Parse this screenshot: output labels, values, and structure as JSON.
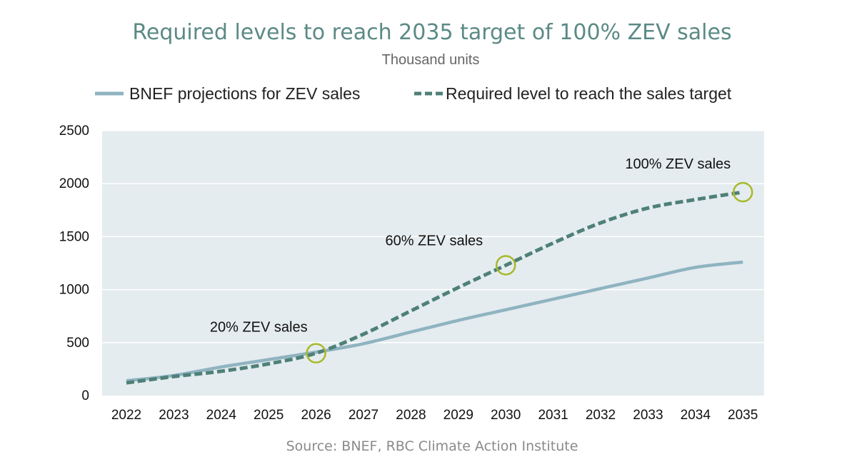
{
  "chart_data": {
    "type": "line",
    "title": "Required levels to reach 2035 target of 100% ZEV sales",
    "subtitle": "Thousand units",
    "source": "Source: BNEF, RBC Climate Action Institute",
    "x": [
      "2022",
      "2023",
      "2024",
      "2025",
      "2026",
      "2027",
      "2028",
      "2029",
      "2030",
      "2031",
      "2032",
      "2033",
      "2034",
      "2035"
    ],
    "yticks": [
      0,
      500,
      1000,
      1500,
      2000,
      2500
    ],
    "ylim": [
      0,
      2500
    ],
    "grid": "horizontal",
    "legend_position": "top",
    "series": [
      {
        "name": "BNEF projections for ZEV sales",
        "style": "solid",
        "color": "#8fb3c1",
        "values": [
          140,
          190,
          270,
          340,
          410,
          490,
          600,
          710,
          810,
          910,
          1010,
          1110,
          1210,
          1260
        ]
      },
      {
        "name": "Required level to reach the sales target",
        "style": "dashed",
        "color": "#4f8078",
        "values": [
          120,
          180,
          230,
          300,
          400,
          580,
          800,
          1020,
          1230,
          1440,
          1630,
          1770,
          1850,
          1920
        ]
      }
    ],
    "annotations": [
      {
        "text": "20% ZEV sales",
        "x": "2026",
        "y": 400
      },
      {
        "text": "60% ZEV sales",
        "x": "2030",
        "y": 1230
      },
      {
        "text": "100% ZEV sales",
        "x": "2035",
        "y": 1920
      }
    ],
    "marker_color": "#a8b82a",
    "plot_background": "#e4ecef"
  }
}
